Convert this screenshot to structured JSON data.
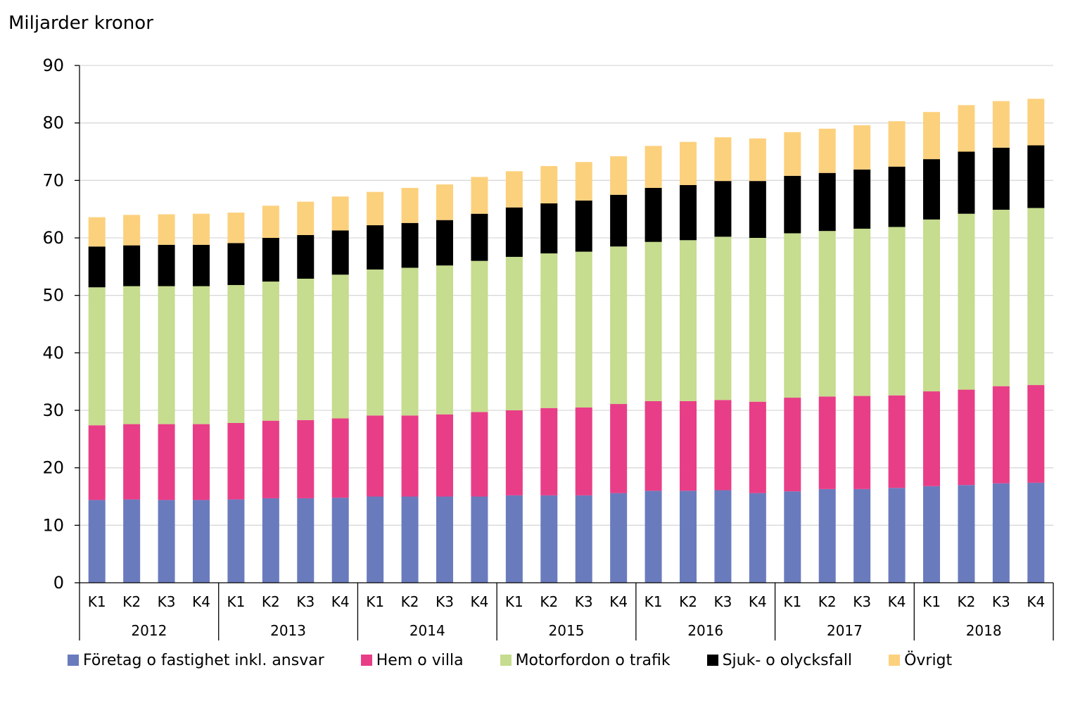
{
  "chart_data": {
    "type": "bar",
    "stacked": true,
    "ylabel": "Miljarder kronor",
    "ylim": [
      0,
      90
    ],
    "yticks": [
      0,
      10,
      20,
      30,
      40,
      50,
      60,
      70,
      80,
      90
    ],
    "grid": true,
    "legend_position": "bottom",
    "years": [
      "2012",
      "2013",
      "2014",
      "2015",
      "2016",
      "2017",
      "2018"
    ],
    "categories": [
      {
        "quarter": "K1",
        "year": "2012"
      },
      {
        "quarter": "K2",
        "year": "2012"
      },
      {
        "quarter": "K3",
        "year": "2012"
      },
      {
        "quarter": "K4",
        "year": "2012"
      },
      {
        "quarter": "K1",
        "year": "2013"
      },
      {
        "quarter": "K2",
        "year": "2013"
      },
      {
        "quarter": "K3",
        "year": "2013"
      },
      {
        "quarter": "K4",
        "year": "2013"
      },
      {
        "quarter": "K1",
        "year": "2014"
      },
      {
        "quarter": "K2",
        "year": "2014"
      },
      {
        "quarter": "K3",
        "year": "2014"
      },
      {
        "quarter": "K4",
        "year": "2014"
      },
      {
        "quarter": "K1",
        "year": "2015"
      },
      {
        "quarter": "K2",
        "year": "2015"
      },
      {
        "quarter": "K3",
        "year": "2015"
      },
      {
        "quarter": "K4",
        "year": "2015"
      },
      {
        "quarter": "K1",
        "year": "2016"
      },
      {
        "quarter": "K2",
        "year": "2016"
      },
      {
        "quarter": "K3",
        "year": "2016"
      },
      {
        "quarter": "K4",
        "year": "2016"
      },
      {
        "quarter": "K1",
        "year": "2017"
      },
      {
        "quarter": "K2",
        "year": "2017"
      },
      {
        "quarter": "K3",
        "year": "2017"
      },
      {
        "quarter": "K4",
        "year": "2017"
      },
      {
        "quarter": "K1",
        "year": "2018"
      },
      {
        "quarter": "K2",
        "year": "2018"
      },
      {
        "quarter": "K3",
        "year": "2018"
      },
      {
        "quarter": "K4",
        "year": "2018"
      }
    ],
    "series": [
      {
        "name": "Företag o fastighet inkl. ansvar",
        "color": "#6a7bbd",
        "values": [
          14.4,
          14.5,
          14.4,
          14.4,
          14.5,
          14.7,
          14.7,
          14.8,
          15.0,
          15.0,
          15.0,
          15.0,
          15.2,
          15.2,
          15.2,
          15.6,
          16.0,
          16.0,
          16.1,
          15.6,
          15.9,
          16.3,
          16.3,
          16.5,
          16.8,
          17.0,
          17.3,
          17.4
        ]
      },
      {
        "name": "Hem o villa",
        "color": "#e83e87",
        "values": [
          13.0,
          13.1,
          13.2,
          13.2,
          13.3,
          13.5,
          13.6,
          13.8,
          14.1,
          14.1,
          14.3,
          14.7,
          14.8,
          15.2,
          15.3,
          15.5,
          15.6,
          15.6,
          15.7,
          15.9,
          16.3,
          16.1,
          16.2,
          16.1,
          16.5,
          16.6,
          16.9,
          17.0
        ]
      },
      {
        "name": "Motorfordon o trafik",
        "color": "#c6dc8e",
        "values": [
          24.0,
          24.0,
          24.0,
          24.0,
          24.0,
          24.2,
          24.6,
          25.0,
          25.4,
          25.7,
          25.9,
          26.3,
          26.7,
          26.9,
          27.1,
          27.4,
          27.7,
          28.0,
          28.4,
          28.5,
          28.6,
          28.8,
          29.1,
          29.3,
          29.9,
          30.6,
          30.7,
          30.8
        ]
      },
      {
        "name": "Sjuk- o olycksfall",
        "color": "#000000",
        "values": [
          7.1,
          7.1,
          7.2,
          7.2,
          7.3,
          7.6,
          7.6,
          7.7,
          7.7,
          7.8,
          7.9,
          8.2,
          8.6,
          8.7,
          8.9,
          9.0,
          9.4,
          9.6,
          9.7,
          9.9,
          10.0,
          10.1,
          10.3,
          10.5,
          10.5,
          10.8,
          10.8,
          10.9
        ]
      },
      {
        "name": "Övrigt",
        "color": "#fcd17d",
        "values": [
          5.1,
          5.3,
          5.3,
          5.4,
          5.3,
          5.6,
          5.8,
          5.9,
          5.8,
          6.1,
          6.2,
          6.4,
          6.3,
          6.5,
          6.7,
          6.7,
          7.3,
          7.5,
          7.6,
          7.4,
          7.6,
          7.7,
          7.7,
          7.9,
          8.2,
          8.1,
          8.1,
          8.1
        ]
      }
    ]
  }
}
